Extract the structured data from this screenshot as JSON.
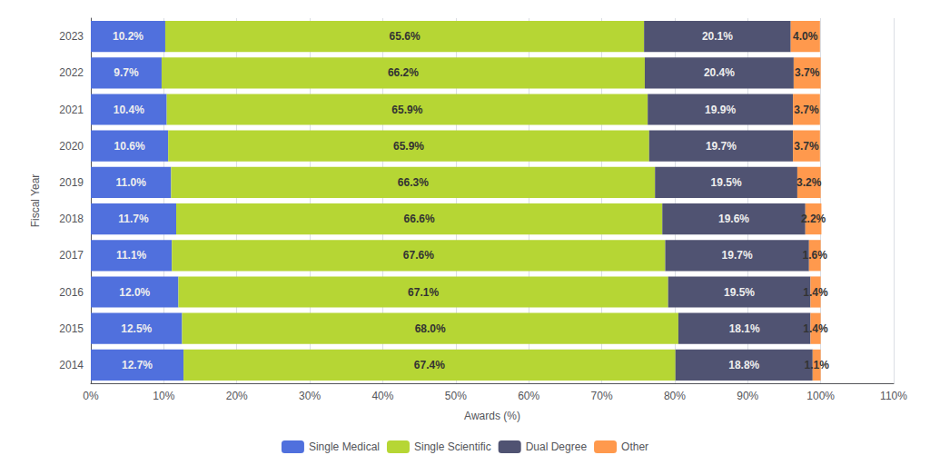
{
  "chart_data": {
    "type": "bar",
    "orientation": "horizontal",
    "stacked": true,
    "categories": [
      "2014",
      "2015",
      "2016",
      "2017",
      "2018",
      "2019",
      "2020",
      "2021",
      "2022",
      "2023"
    ],
    "series": [
      {
        "name": "Single Medical",
        "values": [
          12.7,
          12.5,
          12.0,
          11.1,
          11.7,
          11.0,
          10.6,
          10.4,
          9.7,
          10.2
        ],
        "value_labels": [
          "12.7%",
          "12.5%",
          "12.0%",
          "11.1%",
          "11.7%",
          "11.0%",
          "10.6%",
          "10.4%",
          "9.7%",
          "10.2%"
        ]
      },
      {
        "name": "Single Scientific",
        "values": [
          67.4,
          68.0,
          67.1,
          67.6,
          66.6,
          66.3,
          65.9,
          65.9,
          66.2,
          65.6
        ],
        "value_labels": [
          "67.4%",
          "68.0%",
          "67.1%",
          "67.6%",
          "66.6%",
          "66.3%",
          "65.9%",
          "65.9%",
          "66.2%",
          "65.6%"
        ]
      },
      {
        "name": "Dual Degree",
        "values": [
          18.8,
          18.1,
          19.5,
          19.7,
          19.6,
          19.5,
          19.7,
          19.9,
          20.4,
          20.1
        ],
        "value_labels": [
          "18.8%",
          "18.1%",
          "19.5%",
          "19.7%",
          "19.6%",
          "19.5%",
          "19.7%",
          "19.9%",
          "20.4%",
          "20.1%"
        ]
      },
      {
        "name": "Other",
        "values": [
          1.1,
          1.4,
          1.4,
          1.6,
          2.2,
          3.2,
          3.7,
          3.7,
          3.7,
          4.0
        ],
        "value_labels": [
          "1.1%",
          "1.4%",
          "1.4%",
          "1.6%",
          "2.2%",
          "3.2%",
          "3.7%",
          "3.7%",
          "3.7%",
          "4.0%"
        ]
      }
    ],
    "data_labels": true,
    "xlabel": "Awards (%)",
    "ylabel": "Fiscal Year",
    "xlim": [
      0,
      110
    ],
    "xticks": [
      {
        "value": 0,
        "label": "0%"
      },
      {
        "value": 10,
        "label": "10%"
      },
      {
        "value": 20,
        "label": "20%"
      },
      {
        "value": 30,
        "label": "30%"
      },
      {
        "value": 40,
        "label": "40%"
      },
      {
        "value": 50,
        "label": "50%"
      },
      {
        "value": 60,
        "label": "60%"
      },
      {
        "value": 70,
        "label": "70%"
      },
      {
        "value": 80,
        "label": "80%"
      },
      {
        "value": 90,
        "label": "90%"
      },
      {
        "value": 100,
        "label": "100%"
      },
      {
        "value": 110,
        "label": "110%"
      }
    ],
    "grid": true,
    "legend": "bottom"
  }
}
